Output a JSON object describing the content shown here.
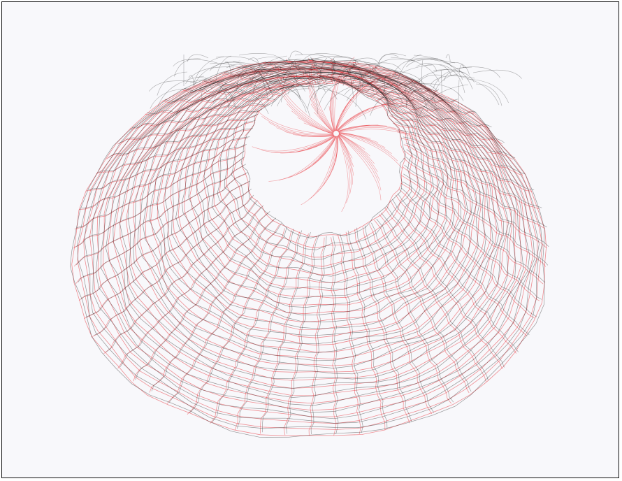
{
  "image": {
    "subject": "wireframe-mesh",
    "colors": {
      "background": "#f8f8fb",
      "border": "#111111",
      "dark_lines": "#1a1a1a",
      "red_lines": "#e8333a"
    }
  }
}
